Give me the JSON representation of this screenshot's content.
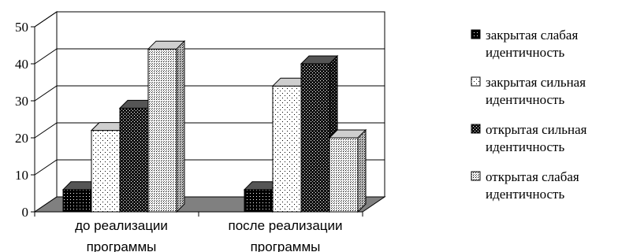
{
  "chart_data": {
    "type": "bar",
    "three_d": true,
    "categories": [
      [
        "до реализации",
        "программы"
      ],
      [
        "после реализации",
        "программы"
      ]
    ],
    "series": [
      {
        "name": [
          "закрытая слабая",
          "идентичность"
        ],
        "values": [
          6,
          6
        ],
        "pattern": "dense-dots",
        "color": "#000000"
      },
      {
        "name": [
          "закрытая сильная",
          "идентичность"
        ],
        "values": [
          22,
          34
        ],
        "pattern": "sparse-dots",
        "color": "#ffffff"
      },
      {
        "name": [
          "открытая сильная",
          "идентичность"
        ],
        "values": [
          28,
          40
        ],
        "pattern": "medium-dots",
        "color": "#000000"
      },
      {
        "name": [
          "открытая слабая",
          "идентичность"
        ],
        "values": [
          44,
          20
        ],
        "pattern": "grid-dots",
        "color": "#ffffff"
      }
    ],
    "ylim": [
      0,
      50
    ],
    "yticks": [
      0,
      10,
      20,
      30,
      40,
      50
    ],
    "grid": true,
    "legend_position": "right",
    "floor_color": "#808080"
  }
}
